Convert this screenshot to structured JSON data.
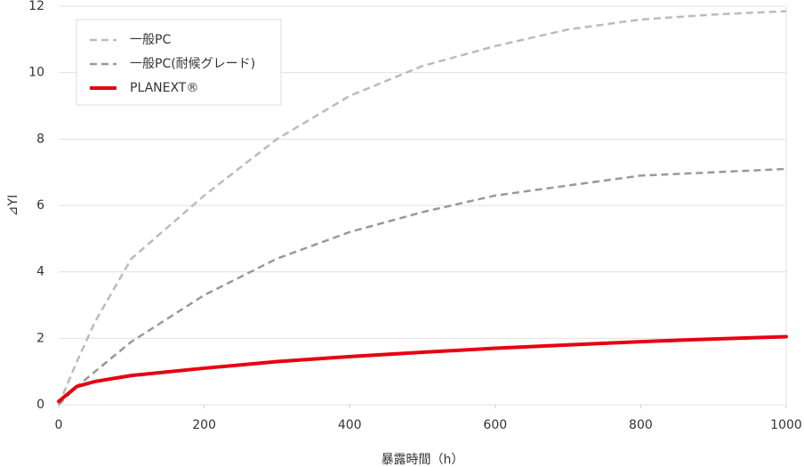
{
  "chart_data": {
    "type": "line",
    "x_label": "暴露時間（h）",
    "y_label": "⊿YI",
    "x": [
      0,
      25,
      50,
      100,
      200,
      300,
      400,
      500,
      600,
      700,
      800,
      900,
      1000
    ],
    "series": [
      {
        "name": "一般PC",
        "color": "#bbbbbb",
        "dashed": true,
        "values": [
          0,
          1.3,
          2.5,
          4.4,
          6.3,
          8.0,
          9.3,
          10.2,
          10.8,
          11.3,
          11.6,
          11.75,
          11.85
        ]
      },
      {
        "name": "一般PC(耐候グレード)",
        "color": "#999999",
        "dashed": true,
        "values": [
          0,
          0.55,
          1.0,
          1.9,
          3.3,
          4.4,
          5.2,
          5.8,
          6.3,
          6.6,
          6.9,
          7.0,
          7.1
        ]
      },
      {
        "name": "PLANEXT®",
        "color": "#e60012",
        "dashed": false,
        "values": [
          0.1,
          0.55,
          0.7,
          0.88,
          1.1,
          1.3,
          1.45,
          1.58,
          1.7,
          1.8,
          1.9,
          1.98,
          2.05
        ]
      }
    ],
    "xlim": [
      0,
      1000
    ],
    "xticks": [
      0,
      200,
      400,
      600,
      800,
      1000
    ],
    "ylim": [
      0,
      12
    ],
    "yticks": [
      0,
      2,
      4,
      6,
      8,
      10,
      12
    ],
    "grid": true,
    "legend": "top-left"
  }
}
